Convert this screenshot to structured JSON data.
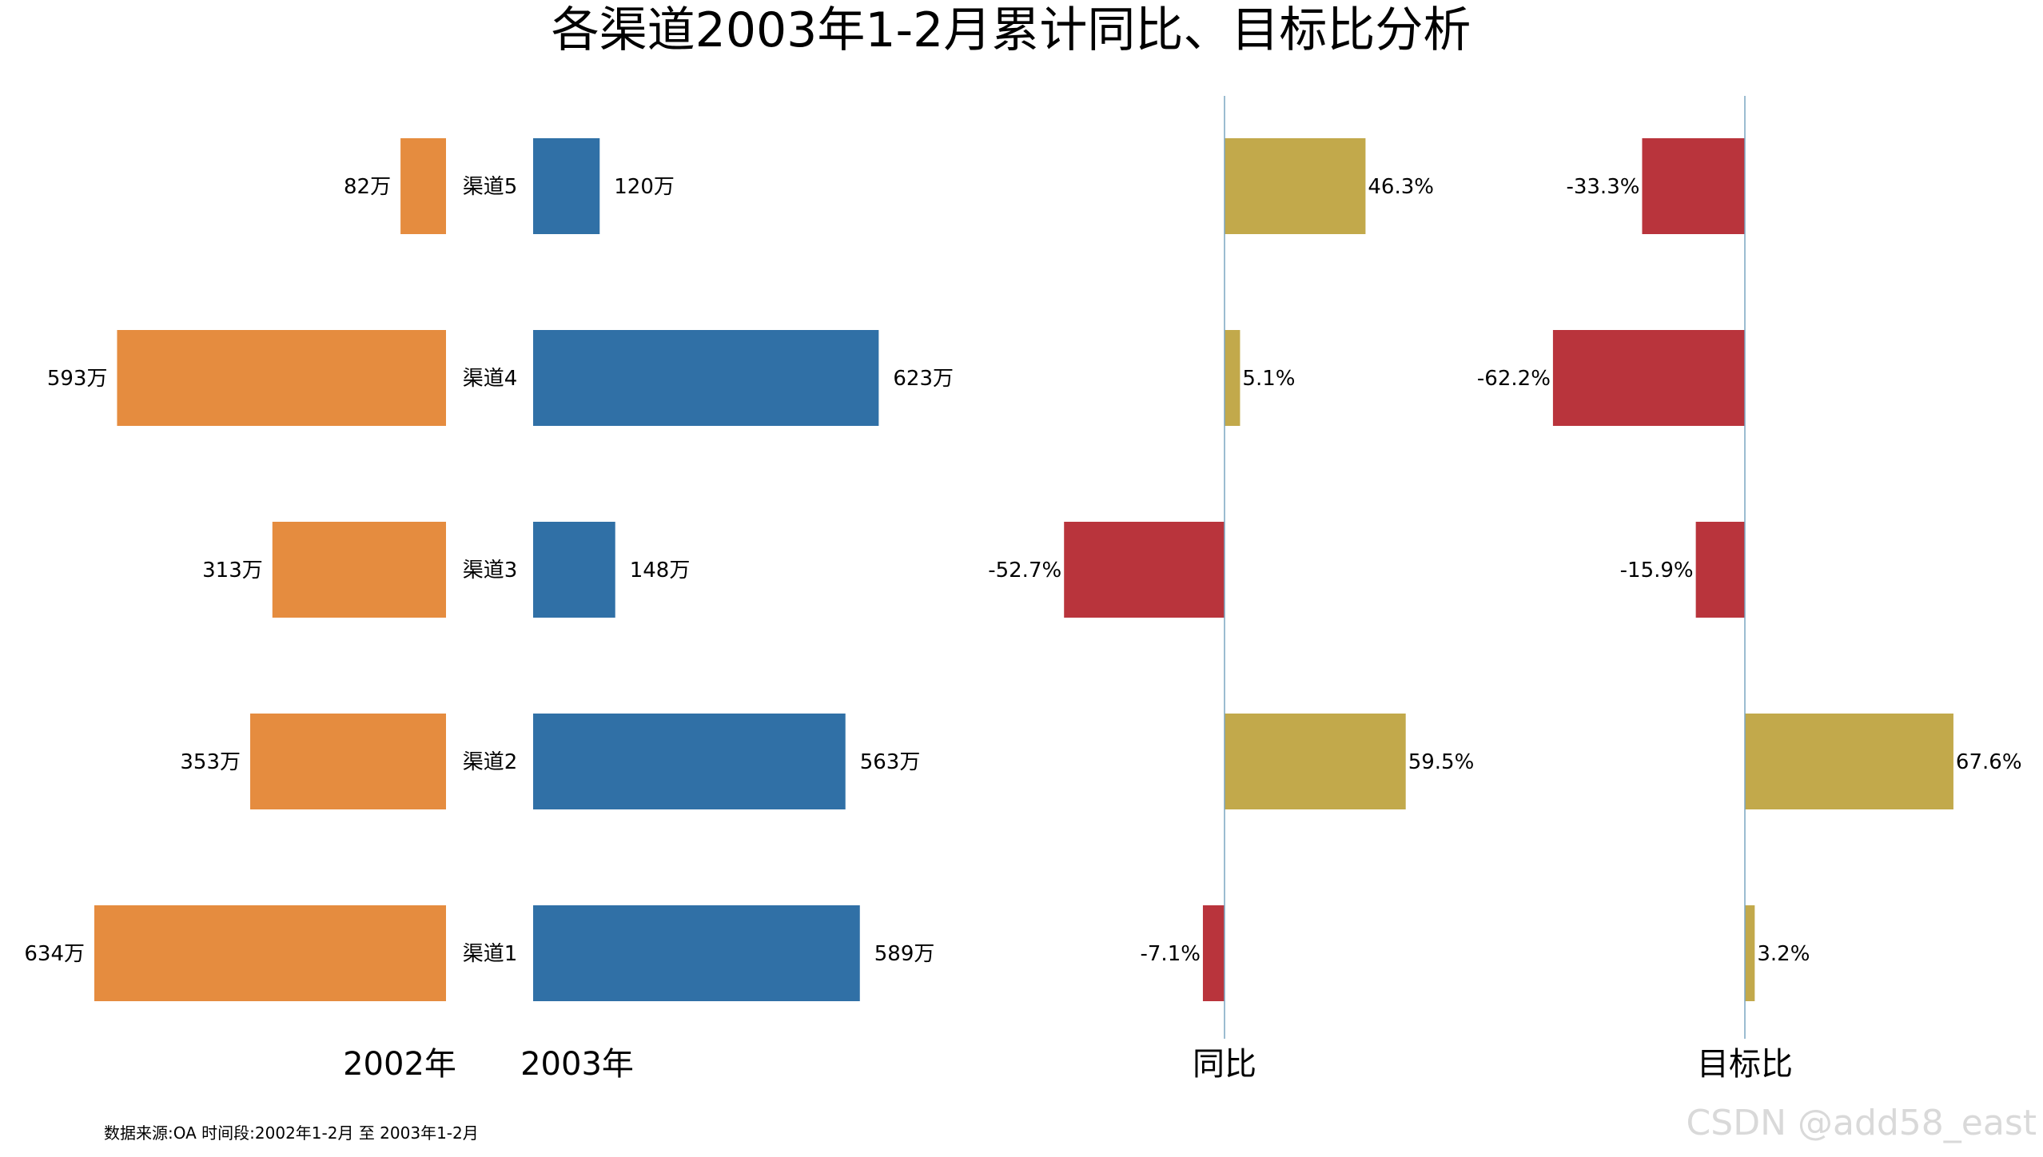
{
  "chart_data": {
    "type": "bar",
    "title": "各渠道2003年1-2月累计同比、目标比分析",
    "categories": [
      "渠道5",
      "渠道4",
      "渠道3",
      "渠道2",
      "渠道1"
    ],
    "panels": [
      {
        "key": "y2002",
        "xlabel": "2002年",
        "values": [
          82,
          593,
          313,
          353,
          634
        ],
        "labels": [
          "82万",
          "593万",
          "313万",
          "353万",
          "634万"
        ],
        "color": "#e58c3f"
      },
      {
        "key": "y2003",
        "xlabel": "2003年",
        "values": [
          120,
          623,
          148,
          563,
          589
        ],
        "labels": [
          "120万",
          "623万",
          "148万",
          "563万",
          "589万"
        ],
        "color": "#3070a6"
      },
      {
        "key": "yoy",
        "xlabel": "同比",
        "values": [
          46.3,
          5.1,
          -52.7,
          59.5,
          -7.1
        ],
        "labels": [
          "46.3%",
          "5.1%",
          "-52.7%",
          "59.5%",
          "-7.1%"
        ],
        "color_positive": "#c2a94b",
        "color_negative": "#b9343c"
      },
      {
        "key": "target",
        "xlabel": "目标比",
        "values": [
          -33.3,
          -62.2,
          -15.9,
          67.6,
          3.2
        ],
        "labels": [
          "-33.3%",
          "-62.2%",
          "-15.9%",
          "67.6%",
          "3.2%"
        ],
        "color_positive": "#c2a94b",
        "color_negative": "#b9343c"
      }
    ],
    "zero_line_color": "#7aa6c2"
  },
  "footer": {
    "source": "数据来源:OA 时间段:2002年1-2月 至 2003年1-2月"
  },
  "watermark": "CSDN @add58_east"
}
